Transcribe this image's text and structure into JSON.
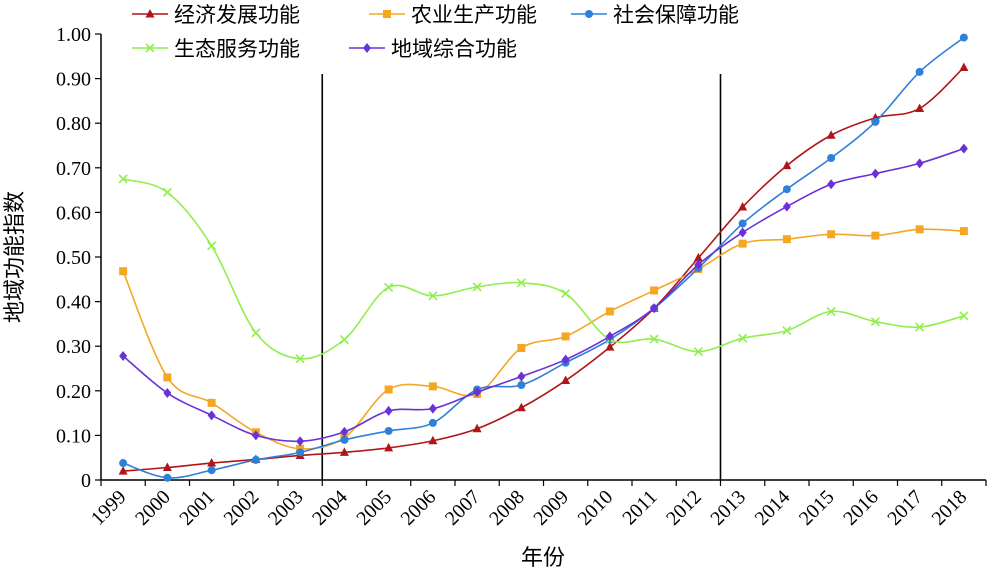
{
  "chart_data": {
    "type": "line",
    "xlabel": "年份",
    "ylabel": "地域功能指数",
    "ylim": [
      0,
      1.0
    ],
    "y_ticks": [
      "0",
      "0.10",
      "0.20",
      "0.30",
      "0.40",
      "0.50",
      "0.60",
      "0.70",
      "0.80",
      "0.90",
      "1.00"
    ],
    "categories": [
      "1999",
      "2000",
      "2001",
      "2002",
      "2003",
      "2004",
      "2005",
      "2006",
      "2007",
      "2008",
      "2009",
      "2010",
      "2011",
      "2012",
      "2013",
      "2014",
      "2015",
      "2016",
      "2017",
      "2018"
    ],
    "reference_lines_x": [
      "2003",
      "2012"
    ],
    "legend_position": "top",
    "series": [
      {
        "name": "经济发展功能",
        "color": "#b01518",
        "marker": "triangle",
        "values": [
          0.02,
          0.028,
          0.038,
          0.046,
          0.055,
          0.062,
          0.072,
          0.088,
          0.115,
          0.162,
          0.223,
          0.298,
          0.385,
          0.498,
          0.612,
          0.705,
          0.773,
          0.812,
          0.833,
          0.925
        ]
      },
      {
        "name": "农业生产功能",
        "color": "#f5a623",
        "marker": "square",
        "values": [
          0.468,
          0.23,
          0.173,
          0.107,
          0.07,
          0.095,
          0.203,
          0.21,
          0.193,
          0.296,
          0.322,
          0.378,
          0.425,
          0.473,
          0.53,
          0.54,
          0.551,
          0.548,
          0.562,
          0.558
        ]
      },
      {
        "name": "社会保障功能",
        "color": "#2f80d8",
        "marker": "circle",
        "values": [
          0.038,
          0.005,
          0.022,
          0.045,
          0.062,
          0.09,
          0.11,
          0.128,
          0.203,
          0.213,
          0.263,
          0.315,
          0.385,
          0.475,
          0.575,
          0.652,
          0.722,
          0.803,
          0.915,
          0.992
        ]
      },
      {
        "name": "生态服务功能",
        "color": "#90ee4f",
        "marker": "x",
        "values": [
          0.675,
          0.645,
          0.525,
          0.33,
          0.272,
          0.315,
          0.432,
          0.413,
          0.433,
          0.442,
          0.418,
          0.315,
          0.316,
          0.288,
          0.318,
          0.335,
          0.378,
          0.355,
          0.343,
          0.368
        ]
      },
      {
        "name": "地域综合功能",
        "color": "#6a32d6",
        "marker": "diamond",
        "values": [
          0.278,
          0.195,
          0.145,
          0.1,
          0.087,
          0.108,
          0.155,
          0.16,
          0.197,
          0.232,
          0.27,
          0.322,
          0.385,
          0.483,
          0.555,
          0.613,
          0.663,
          0.687,
          0.71,
          0.743
        ]
      }
    ]
  }
}
